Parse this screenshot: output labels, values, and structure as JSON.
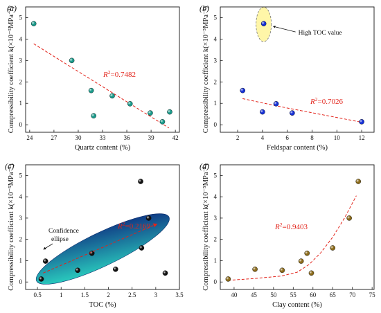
{
  "y_axis_label": "Compressibility coefficient k(×10⁻⁵MPa⁻¹)",
  "colors": {
    "teal": "#1a9a8a",
    "blue": "#1530d6",
    "black": "#111111",
    "brown": "#8a6a1a",
    "trend": "#e2231a",
    "ellipse_start": "#2ee6c8",
    "ellipse_end": "#0c1f7a",
    "highlight": "#fff6a8"
  },
  "chart_data": [
    {
      "panel": "(a)",
      "type": "scatter",
      "xlabel": "Quartz content (%)",
      "ylabel": "Compressibility coefficient k(×10⁻⁵MPa⁻¹)",
      "xlim": [
        23.5,
        42.5
      ],
      "ylim": [
        -0.35,
        5.5
      ],
      "xticks": [
        24,
        27,
        30,
        33,
        36,
        39,
        42
      ],
      "yticks": [
        0,
        1,
        2,
        3,
        4,
        5
      ],
      "marker_color": "teal",
      "points": [
        {
          "x": 24.5,
          "y": 4.72
        },
        {
          "x": 29.2,
          "y": 3.0
        },
        {
          "x": 31.6,
          "y": 1.6
        },
        {
          "x": 31.9,
          "y": 0.42
        },
        {
          "x": 34.2,
          "y": 1.35
        },
        {
          "x": 36.4,
          "y": 0.98
        },
        {
          "x": 38.9,
          "y": 0.55
        },
        {
          "x": 40.4,
          "y": 0.14
        },
        {
          "x": 41.3,
          "y": 0.6
        }
      ],
      "fit": {
        "kind": "linear",
        "x": [
          24.5,
          41.2
        ],
        "y": [
          3.78,
          -0.15
        ]
      },
      "r2_label": "=0.7482"
    },
    {
      "panel": "(b)",
      "type": "scatter",
      "xlabel": "Feldspar content (%)",
      "ylabel": "Compressibility coefficient k(×10⁻⁵MPa⁻¹)",
      "xlim": [
        0.6,
        13.0
      ],
      "ylim": [
        -0.35,
        5.5
      ],
      "xticks": [
        2,
        4,
        6,
        8,
        10,
        12
      ],
      "yticks": [
        0,
        1,
        2,
        3,
        4,
        5
      ],
      "marker_color": "blue",
      "points": [
        {
          "x": 2.4,
          "y": 1.6
        },
        {
          "x": 4.0,
          "y": 0.6
        },
        {
          "x": 4.1,
          "y": 4.72
        },
        {
          "x": 5.1,
          "y": 0.98
        },
        {
          "x": 6.4,
          "y": 0.55
        },
        {
          "x": 12.0,
          "y": 0.14
        }
      ],
      "fit": {
        "kind": "curve",
        "x": [
          2.4,
          4,
          6,
          8,
          10,
          12.0
        ],
        "y": [
          1.22,
          1.02,
          0.78,
          0.56,
          0.34,
          0.12
        ]
      },
      "r2_label": "=0.7026",
      "highlight": {
        "x": 4.1,
        "y": 4.72,
        "label": "High TOC value"
      }
    },
    {
      "panel": "(c)",
      "type": "scatter",
      "xlabel": "TOC (%)",
      "ylabel": "Compressibility coefficient k(×10⁻⁵MPa⁻¹)",
      "xlim": [
        0.25,
        3.5
      ],
      "ylim": [
        -0.35,
        5.5
      ],
      "xticks": [
        0.5,
        1.0,
        1.5,
        2.0,
        2.5,
        3.0,
        3.5
      ],
      "yticks": [
        0,
        1,
        2,
        3,
        4,
        5
      ],
      "marker_color": "black",
      "points": [
        {
          "x": 0.58,
          "y": 0.14
        },
        {
          "x": 0.67,
          "y": 0.98
        },
        {
          "x": 1.35,
          "y": 0.55
        },
        {
          "x": 1.65,
          "y": 1.35
        },
        {
          "x": 2.15,
          "y": 0.6
        },
        {
          "x": 2.68,
          "y": 4.72
        },
        {
          "x": 2.7,
          "y": 1.6
        },
        {
          "x": 2.85,
          "y": 3.0
        },
        {
          "x": 3.2,
          "y": 0.42
        }
      ],
      "fit": {
        "kind": "linear",
        "x": [
          0.62,
          3.02
        ],
        "y": [
          0.42,
          2.72
        ]
      },
      "r2_label": "=0.2169",
      "ellipse_label": [
        "Confidence",
        "ellipse"
      ]
    },
    {
      "panel": "(d)",
      "type": "scatter",
      "xlabel": "Clay content (%)",
      "ylabel": "Compressibility coefficient k(×10⁻⁵MPa⁻¹)",
      "xlim": [
        36.5,
        75.5
      ],
      "ylim": [
        -0.35,
        5.5
      ],
      "xticks": [
        40,
        45,
        50,
        55,
        60,
        65,
        70,
        75
      ],
      "yticks": [
        0,
        1,
        2,
        3,
        4,
        5
      ],
      "marker_color": "brown",
      "points": [
        {
          "x": 38.5,
          "y": 0.14
        },
        {
          "x": 45.3,
          "y": 0.6
        },
        {
          "x": 52.2,
          "y": 0.55
        },
        {
          "x": 57.0,
          "y": 0.98
        },
        {
          "x": 58.5,
          "y": 1.35
        },
        {
          "x": 59.6,
          "y": 0.42
        },
        {
          "x": 65.0,
          "y": 1.6
        },
        {
          "x": 69.2,
          "y": 3.0
        },
        {
          "x": 71.5,
          "y": 4.72
        }
      ],
      "fit": {
        "kind": "curve",
        "x": [
          38.5,
          45,
          52,
          56,
          59,
          62,
          65,
          68,
          71.0
        ],
        "y": [
          0.08,
          0.16,
          0.28,
          0.46,
          0.82,
          1.38,
          2.1,
          3.0,
          4.05
        ]
      },
      "r2_label": "=0.9403"
    }
  ]
}
